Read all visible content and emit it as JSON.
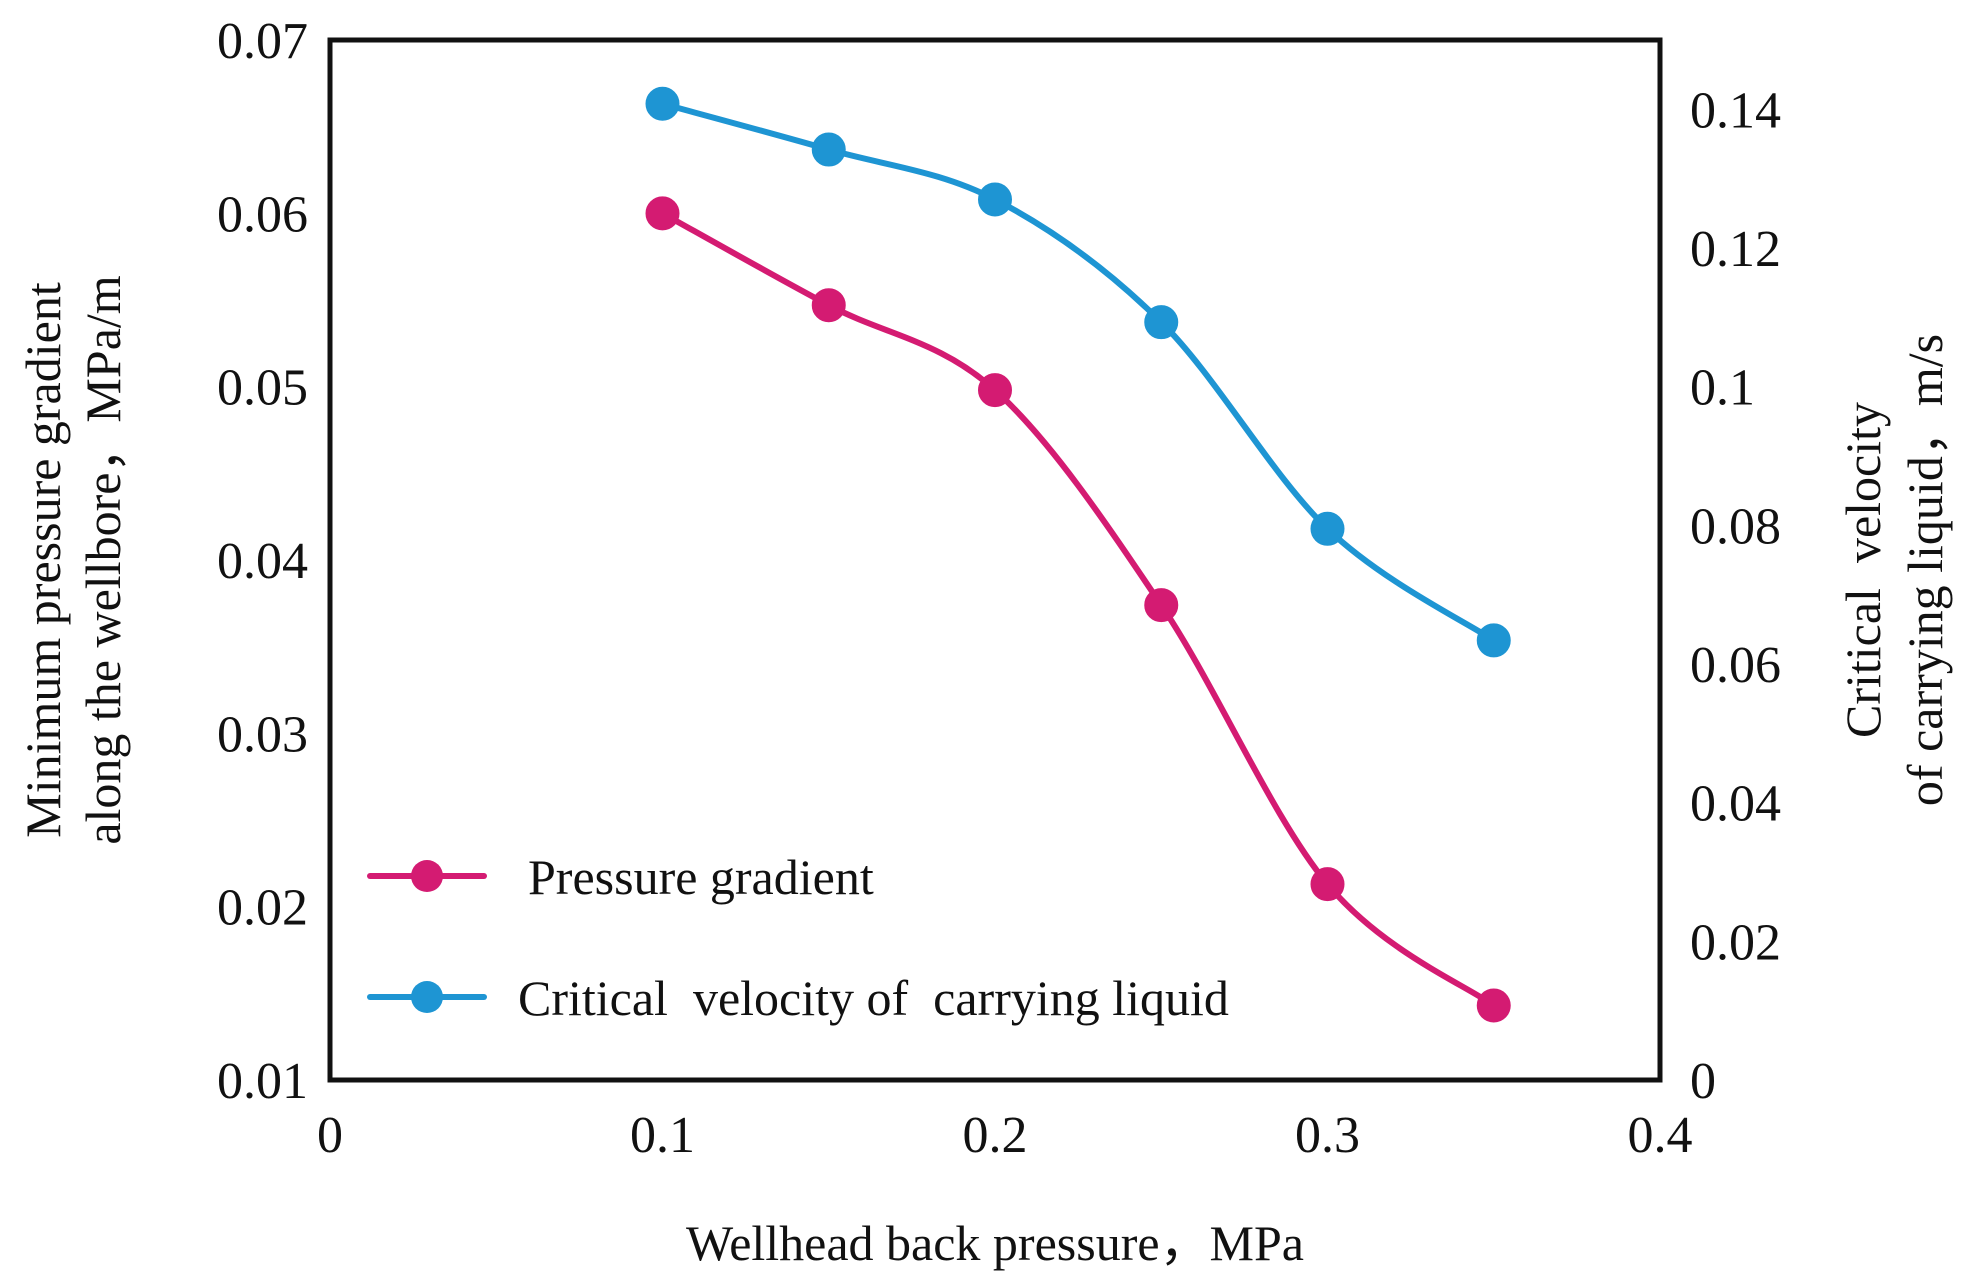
{
  "chart_data": {
    "type": "line",
    "title": "",
    "xlabel": "Wellhead back pressure，MPa",
    "ylabel_left_line1": "Minimum pressure gradient",
    "ylabel_left_line2": "along the wellbore，MPa/m",
    "ylabel_right_line1": "Critical  velocity",
    "ylabel_right_line2": "of carrying liquid，m/s",
    "x": [
      0.1,
      0.15,
      0.2,
      0.25,
      0.3,
      0.35
    ],
    "xlim": [
      0,
      0.4
    ],
    "ylim_left": [
      0.01,
      0.07
    ],
    "ylim_right": [
      0,
      0.15
    ],
    "x_ticks": [
      "0",
      "0.1",
      "0.2",
      "0.3",
      "0.4"
    ],
    "y_ticks_left": [
      "0.01",
      "0.02",
      "0.03",
      "0.04",
      "0.05",
      "0.06",
      "0.07"
    ],
    "y_ticks_right": [
      "0",
      "0.02",
      "0.04",
      "0.06",
      "0.08",
      "0.1",
      "0.12",
      "0.14"
    ],
    "legend_position": "lower-left",
    "series": [
      {
        "name": "Pressure gradient",
        "axis": "left",
        "color": "#d41b72",
        "values": [
          0.06,
          0.0547,
          0.0498,
          0.0374,
          0.0213,
          0.0143
        ]
      },
      {
        "name": "Critical  velocity of  carrying liquid",
        "axis": "right",
        "color": "#1e95d3",
        "values": [
          0.1408,
          0.1342,
          0.127,
          0.1093,
          0.0795,
          0.0634
        ]
      }
    ]
  }
}
